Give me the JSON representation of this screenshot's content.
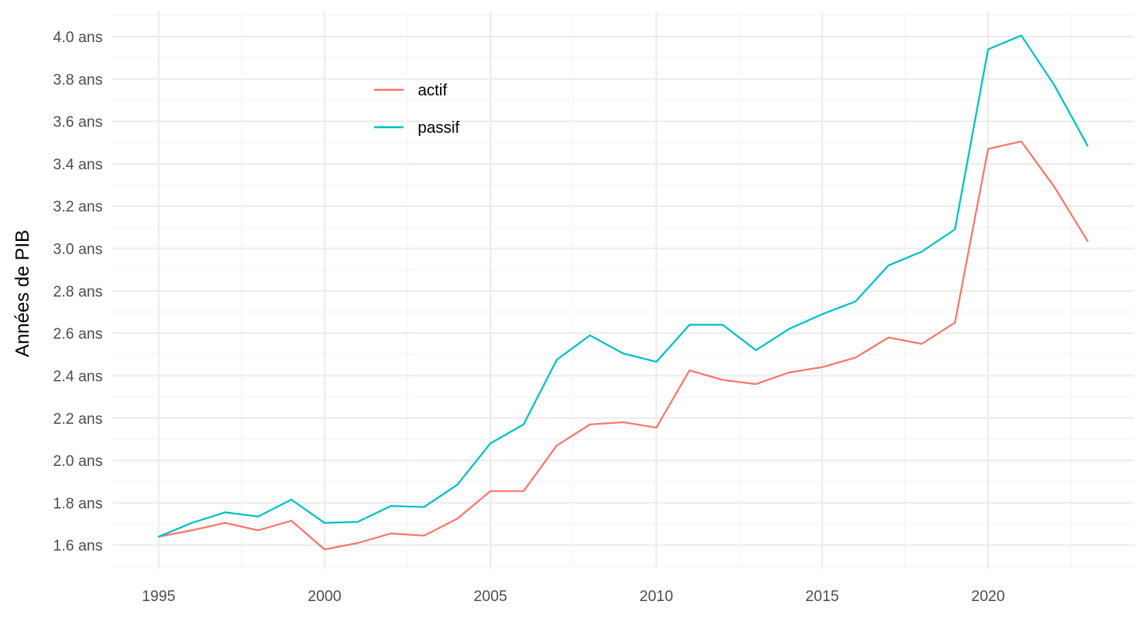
{
  "chart_data": {
    "type": "line",
    "title": "",
    "xlabel": "",
    "ylabel": "Années de PIB",
    "x_ticks": [
      1995,
      2000,
      2005,
      2010,
      2015,
      2020
    ],
    "x_tick_labels": [
      "1995",
      "2000",
      "2005",
      "2010",
      "2015",
      "2020"
    ],
    "y_ticks": [
      1.6,
      1.8,
      2.0,
      2.2,
      2.4,
      2.6,
      2.8,
      3.0,
      3.2,
      3.4,
      3.6,
      3.8,
      4.0
    ],
    "y_tick_labels": [
      "1.6 ans",
      "1.8 ans",
      "2.0 ans",
      "2.2 ans",
      "2.4 ans",
      "2.6 ans",
      "2.8 ans",
      "3.0 ans",
      "3.2 ans",
      "3.4 ans",
      "3.6 ans",
      "3.8 ans",
      "4.0 ans"
    ],
    "xlim": [
      1993.6,
      2024.4
    ],
    "ylim": [
      1.49,
      4.12
    ],
    "grid": true,
    "legend_position": "top-left-inside",
    "x": [
      1995,
      1996,
      1997,
      1998,
      1999,
      2000,
      2001,
      2002,
      2003,
      2004,
      2005,
      2006,
      2007,
      2008,
      2009,
      2010,
      2011,
      2012,
      2013,
      2014,
      2015,
      2016,
      2017,
      2018,
      2019,
      2020,
      2021,
      2022,
      2023
    ],
    "series": [
      {
        "name": "actif",
        "color": "#F8766D",
        "values": [
          1.64,
          1.67,
          1.705,
          1.67,
          1.715,
          1.58,
          1.61,
          1.655,
          1.645,
          1.725,
          1.855,
          1.855,
          2.07,
          2.17,
          2.18,
          2.155,
          2.425,
          2.38,
          2.36,
          2.415,
          2.44,
          2.485,
          2.58,
          2.55,
          2.65,
          3.47,
          3.505,
          3.29,
          3.035
        ]
      },
      {
        "name": "passif",
        "color": "#00BFC4",
        "values": [
          1.64,
          1.705,
          1.755,
          1.735,
          1.815,
          1.705,
          1.71,
          1.785,
          1.78,
          1.885,
          2.08,
          2.17,
          2.475,
          2.59,
          2.505,
          2.465,
          2.64,
          2.64,
          2.52,
          2.62,
          2.69,
          2.75,
          2.92,
          2.985,
          3.09,
          3.94,
          4.005,
          3.77,
          3.485
        ]
      }
    ]
  }
}
